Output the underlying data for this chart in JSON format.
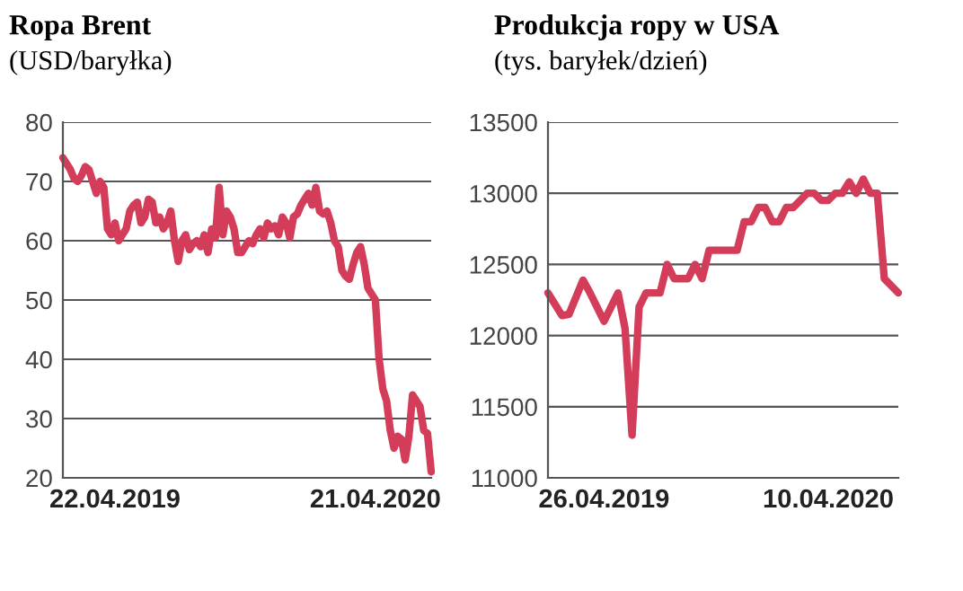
{
  "chart_data": [
    {
      "type": "line",
      "title": "Ropa Brent",
      "subtitle": "(USD/baryłka)",
      "categories": [
        null,
        null,
        null,
        null,
        null,
        null,
        null,
        null,
        null,
        null,
        null,
        null,
        null,
        null,
        "22.04.2019",
        null,
        null,
        null,
        null,
        null,
        null,
        null,
        null,
        null,
        null,
        null,
        null,
        null,
        null,
        null,
        null,
        null,
        null,
        null,
        null,
        null,
        null,
        null,
        null,
        null,
        null,
        null,
        null,
        null,
        null,
        null,
        null,
        null,
        null,
        null,
        null,
        null,
        null,
        null,
        null,
        null,
        null,
        null,
        null,
        null,
        null,
        null,
        null,
        null,
        null,
        null,
        null,
        null,
        null,
        null,
        null,
        null,
        null,
        null,
        null,
        null,
        null,
        null,
        null,
        null,
        null,
        null,
        null,
        null,
        "21.04.2020",
        null,
        null,
        null,
        null,
        null,
        null,
        null,
        null,
        null,
        null,
        null,
        null,
        null,
        null,
        null
      ],
      "series": [
        {
          "color": "#d33d5a",
          "values": [
            74,
            73,
            72,
            70.5,
            70,
            71,
            72.5,
            72,
            70,
            68,
            70,
            69,
            62,
            61,
            63,
            60,
            61,
            62,
            65,
            66,
            66.5,
            63,
            64,
            67,
            66.5,
            63,
            64,
            62,
            63,
            65,
            60,
            56.5,
            60,
            61,
            58.5,
            59.5,
            60,
            59,
            61,
            58,
            62,
            60.5,
            69,
            61,
            65,
            64,
            62,
            58,
            58,
            59,
            60,
            59.5,
            61,
            62,
            60.5,
            63,
            62,
            62.5,
            61,
            64,
            63,
            60.5,
            64,
            64.5,
            66,
            67,
            68,
            66,
            69,
            65,
            64.5,
            65,
            63,
            60,
            59,
            55,
            54,
            53.5,
            56,
            58,
            59,
            56,
            52,
            51,
            50,
            40,
            35,
            33,
            28,
            25,
            27,
            26.5,
            23,
            27,
            34,
            33,
            32,
            28,
            27.5,
            21
          ]
        }
      ],
      "ylim": [
        20,
        80
      ],
      "yticks": [
        20,
        30,
        40,
        50,
        60,
        70,
        80
      ],
      "grid": "y",
      "legend": false,
      "marker": "none",
      "line_style": "solid"
    },
    {
      "type": "line",
      "title": "Produkcja ropy w USA",
      "subtitle": "(tys. baryłek/dzień)",
      "categories": [
        null,
        null,
        null,
        null,
        null,
        null,
        null,
        null,
        "26.04.2019",
        null,
        null,
        null,
        null,
        null,
        null,
        null,
        null,
        null,
        null,
        null,
        null,
        null,
        null,
        null,
        null,
        null,
        null,
        null,
        null,
        null,
        null,
        null,
        null,
        null,
        null,
        null,
        null,
        null,
        null,
        null,
        "10.04.2020",
        null,
        null,
        null,
        null,
        null,
        null,
        null,
        null,
        null,
        null
      ],
      "series": [
        {
          "color": "#d33d5a",
          "values": [
            12300,
            12220,
            12140,
            12150,
            12270,
            12390,
            12300,
            12200,
            12100,
            12200,
            12300,
            12050,
            11300,
            12200,
            12300,
            12300,
            12300,
            12500,
            12400,
            12400,
            12400,
            12500,
            12400,
            12600,
            12600,
            12600,
            12600,
            12600,
            12800,
            12800,
            12900,
            12900,
            12800,
            12800,
            12900,
            12900,
            12950,
            13000,
            13000,
            12950,
            12950,
            13000,
            13000,
            13080,
            13000,
            13100,
            13000,
            13000,
            12400,
            12350,
            12300
          ]
        }
      ],
      "ylim": [
        11000,
        13500
      ],
      "yticks": [
        11000,
        11500,
        12000,
        12500,
        13000,
        13500
      ],
      "grid": "y",
      "legend": false,
      "marker": "none",
      "line_style": "solid"
    }
  ]
}
